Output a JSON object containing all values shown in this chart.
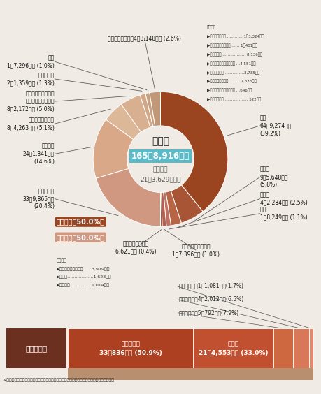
{
  "title": "歳　入",
  "total": "165億8,916万円",
  "subtitle": "前年比較\n21億3,629万円減",
  "bg_color": "#f0ebe4",
  "donut_segments": [
    {
      "label": "町税\n64億9,274万円\n(39.2%)",
      "pct": 39.2,
      "color": "#9b4520",
      "label_side": "right"
    },
    {
      "label": "繰入金\n9億5,648万円\n(5.8%)",
      "pct": 5.8,
      "color": "#a85535",
      "label_side": "right"
    },
    {
      "label": "繰越金\n4億2,284万円 (2.5%)",
      "pct": 2.5,
      "color": "#b86545",
      "label_side": "right"
    },
    {
      "label": "諸収入\n1億8,249万円 (1.1%)",
      "pct": 1.1,
      "color": "#c07060",
      "label_side": "right"
    },
    {
      "label": "使用料および手数料\n1億7,396万円 (1.0%)",
      "pct": 1.0,
      "color": "#b86050",
      "label_side": "bottom"
    },
    {
      "label": "その他の自主財源\n6,621万円 (0.4%)",
      "pct": 0.4,
      "color": "#a85848",
      "label_side": "bottom"
    },
    {
      "label": "国庫支出金\n33億9,865万円\n(20.4%)",
      "pct": 20.4,
      "color": "#d09880",
      "label_side": "left"
    },
    {
      "label": "都支出金\n24億1,341万円\n(14.6%)",
      "pct": 14.6,
      "color": "#d8a888",
      "label_side": "left"
    },
    {
      "label": "地方消費税交付金\n8億4,263万円 (5.1%)",
      "pct": 5.1,
      "color": "#ddb898",
      "label_side": "left"
    },
    {
      "label": "国有提供施設等所在\n市町村助成交付金等\n8億2,172万円 (5.0%)",
      "pct": 5.0,
      "color": "#d8b090",
      "label_side": "left"
    },
    {
      "label": "地方交付税\n2億1,359万円 (1.3%)",
      "pct": 1.3,
      "color": "#d0a888",
      "label_side": "left"
    },
    {
      "label": "町債\n1億7,296万円 (1.0%)",
      "pct": 1.0,
      "color": "#c8a080",
      "label_side": "left"
    },
    {
      "label": "その他の依存財源4億3,148万円 (2.6%)",
      "pct": 2.6,
      "color": "#c09878",
      "label_side": "top"
    }
  ],
  "jizai_label": "自主財源（50.0%）",
  "izon_label": "依存財源（50.0%）",
  "jizai_color": "#9b4520",
  "izon_color": "#d09880",
  "note_lines": [
    "【内訳】",
    "▶地方特例交付金 ………… 1億3,324万円",
    "▶法人　事業税交付金 …… 1億401万円",
    "▶地方譲与税 ……………… 8,136万円",
    "▶株式等譲渡所得割交付金 …4,551万円",
    "▶配当割交付金 ……………3,735万円",
    "▶環境性能割交付金 ………1,833万円",
    "▶交通安全対策特別交付金 …646万円",
    "▶利子割交付金 ……………… 522万円"
  ],
  "jizai_note_lines": [
    "【内訳】",
    "▶分担金および負担金……3,979万円",
    "▶寄附金………………1,628万円",
    "▶財産収入……………1,014万円"
  ],
  "bar_title": "町税の内訳",
  "bar_title_bg": "#6b3020",
  "bar_items": [
    {
      "label": "固定資産税\n33億836万円 (50.9%)",
      "pct": 50.9,
      "color": "#ad4020"
    },
    {
      "label": "町民税\n21億4,553万円 (33.0%)",
      "pct": 33.0,
      "color": "#c05030"
    },
    {
      "label": "都市計画税",
      "pct": 7.9,
      "color": "#ce6840"
    },
    {
      "label": "町たばこ税",
      "pct": 6.5,
      "color": "#d87858"
    },
    {
      "label": "軽自動車税",
      "pct": 1.7,
      "color": "#e08870"
    }
  ],
  "bar_small_labels": [
    "軽自動車税　1億1,081万円(1.7%)",
    "町たばこ税　4億2,012万円(6.5%)",
    "都市計画税　5億792万円(7.9%)"
  ],
  "footnote": "※都市計画税は、都市計画道路整備事業、下水道整備事業、土地区画整理事業に使いました。"
}
